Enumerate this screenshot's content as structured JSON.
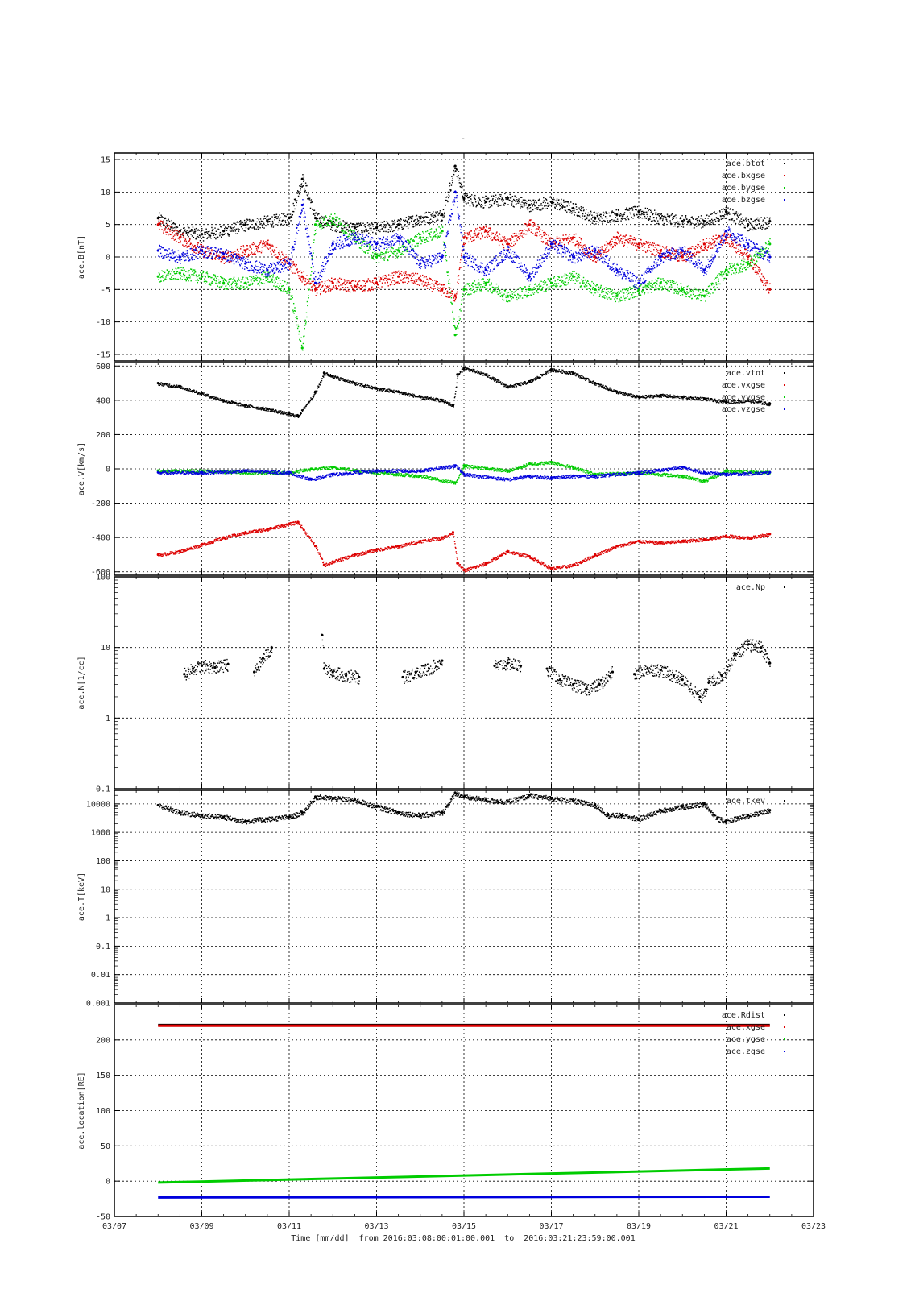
{
  "page_title": "-",
  "colors": {
    "black": "#000000",
    "red": "#dd0000",
    "green": "#00cc00",
    "blue": "#0000dd"
  },
  "time_axis": {
    "xlabel": "Time [mm/dd]  from 2016:03:08:00:01:00.001  to  2016:03:21:23:59:00.001",
    "tick_labels": [
      "03/07",
      "03/09",
      "03/11",
      "03/13",
      "03/15",
      "03/17",
      "03/19",
      "03/21",
      "03/23"
    ],
    "tick_days": [
      7,
      9,
      11,
      13,
      15,
      17,
      19,
      21,
      23
    ],
    "xlim_days": [
      7,
      23
    ],
    "data_start_day": 8.0,
    "data_end_day": 22.0
  },
  "chart_data": [
    {
      "type": "scatter",
      "ylabel": "ace.B[nT]",
      "ylim": [
        -16,
        16
      ],
      "yscale": "linear",
      "yticks": [
        -15,
        -10,
        -5,
        0,
        5,
        10,
        15
      ],
      "grid": true,
      "legend_position": "top-right",
      "series": [
        {
          "name": "ace.btot",
          "color": "#000000",
          "x": [
            8.0,
            8.5,
            9.0,
            9.5,
            10.0,
            10.5,
            11.0,
            11.3,
            11.6,
            12.0,
            12.5,
            13.0,
            13.5,
            14.0,
            14.5,
            14.8,
            15.0,
            15.5,
            16.0,
            16.5,
            17.0,
            17.5,
            18.0,
            18.5,
            19.0,
            19.5,
            20.0,
            20.5,
            21.0,
            21.5,
            22.0
          ],
          "y": [
            6,
            4,
            3.5,
            4,
            5,
            5.5,
            6,
            12,
            6,
            5,
            4.5,
            4.5,
            5,
            6,
            6.5,
            14,
            9,
            8.5,
            9,
            8,
            8.5,
            7.5,
            6,
            6.5,
            7,
            6,
            5.5,
            5.5,
            7,
            5,
            5.5
          ]
        },
        {
          "name": "ace.bxgse",
          "color": "#dd0000",
          "x": [
            8.0,
            8.5,
            9.0,
            9.5,
            10.0,
            10.5,
            11.0,
            11.3,
            11.6,
            12.0,
            12.5,
            13.0,
            13.5,
            14.0,
            14.5,
            14.8,
            15.0,
            15.5,
            16.0,
            16.5,
            17.0,
            17.5,
            18.0,
            18.5,
            19.0,
            19.5,
            20.0,
            20.5,
            21.0,
            21.5,
            22.0
          ],
          "y": [
            5,
            3,
            1,
            0,
            1,
            2,
            -1,
            -3,
            -5,
            -4,
            -4.5,
            -4,
            -3,
            -3.5,
            -5,
            -6,
            3,
            4,
            2,
            5,
            2,
            3,
            0,
            3,
            2,
            1,
            0,
            2,
            3,
            0,
            -5
          ]
        },
        {
          "name": "ace.bygse",
          "color": "#00cc00",
          "x": [
            8.0,
            8.5,
            9.0,
            9.5,
            10.0,
            10.5,
            11.0,
            11.3,
            11.6,
            12.0,
            12.5,
            13.0,
            13.5,
            14.0,
            14.5,
            14.8,
            15.0,
            15.5,
            16.0,
            16.5,
            17.0,
            17.5,
            18.0,
            18.5,
            19.0,
            19.5,
            20.0,
            20.5,
            21.0,
            21.5,
            22.0
          ],
          "y": [
            -3,
            -2.5,
            -3,
            -4,
            -4,
            -3,
            -5,
            -14,
            5,
            6,
            3,
            0,
            1,
            3,
            4,
            -12,
            -5,
            -4,
            -6,
            -5,
            -4,
            -3,
            -5,
            -6,
            -5,
            -4,
            -5,
            -6,
            -2,
            -1,
            2
          ]
        },
        {
          "name": "ace.bzgse",
          "color": "#0000dd",
          "x": [
            8.0,
            8.5,
            9.0,
            9.5,
            10.0,
            10.5,
            11.0,
            11.3,
            11.6,
            12.0,
            12.5,
            13.0,
            13.5,
            14.0,
            14.5,
            14.8,
            15.0,
            15.5,
            16.0,
            16.5,
            17.0,
            17.5,
            18.0,
            18.5,
            19.0,
            19.5,
            20.0,
            20.5,
            21.0,
            21.5,
            22.0
          ],
          "y": [
            1,
            0,
            1,
            0.5,
            -1,
            -2,
            -1,
            8,
            -4,
            2,
            3,
            2,
            3,
            -1,
            0,
            10,
            0,
            -2,
            1,
            -3,
            2,
            0,
            1,
            -2,
            -4,
            0,
            1,
            -2,
            4,
            2,
            0
          ]
        }
      ]
    },
    {
      "type": "scatter",
      "ylabel": "ace.V[km/s]",
      "ylim": [
        -620,
        620
      ],
      "yscale": "linear",
      "yticks": [
        -600,
        -400,
        -200,
        0,
        200,
        400,
        600
      ],
      "grid": true,
      "legend_position": "top-right",
      "series": [
        {
          "name": "ace.vtot",
          "color": "#000000",
          "x": [
            8.0,
            8.5,
            9.0,
            9.5,
            10.0,
            10.5,
            11.0,
            11.2,
            11.6,
            11.8,
            12.0,
            12.5,
            13.0,
            13.5,
            14.0,
            14.5,
            14.75,
            14.85,
            15.0,
            15.5,
            16.0,
            16.5,
            17.0,
            17.5,
            18.0,
            18.5,
            19.0,
            19.5,
            20.0,
            20.5,
            21.0,
            21.5,
            22.0
          ],
          "y": [
            500,
            480,
            440,
            400,
            370,
            350,
            320,
            310,
            450,
            560,
            540,
            500,
            470,
            450,
            420,
            400,
            370,
            550,
            590,
            550,
            480,
            510,
            580,
            560,
            500,
            450,
            420,
            430,
            420,
            410,
            390,
            400,
            380
          ]
        },
        {
          "name": "ace.vxgse",
          "color": "#dd0000",
          "x": [
            8.0,
            8.5,
            9.0,
            9.5,
            10.0,
            10.5,
            11.0,
            11.2,
            11.6,
            11.8,
            12.0,
            12.5,
            13.0,
            13.5,
            14.0,
            14.5,
            14.75,
            14.85,
            15.0,
            15.5,
            16.0,
            16.5,
            17.0,
            17.5,
            18.0,
            18.5,
            19.0,
            19.5,
            20.0,
            20.5,
            21.0,
            21.5,
            22.0
          ],
          "y": [
            -500,
            -480,
            -440,
            -400,
            -370,
            -350,
            -320,
            -310,
            -450,
            -560,
            -540,
            -500,
            -470,
            -450,
            -420,
            -400,
            -370,
            -550,
            -590,
            -550,
            -480,
            -510,
            -580,
            -560,
            -500,
            -450,
            -420,
            -430,
            -420,
            -410,
            -390,
            -400,
            -380
          ]
        },
        {
          "name": "ace.vygse",
          "color": "#00cc00",
          "x": [
            8.0,
            9.0,
            10.0,
            11.0,
            11.5,
            12.0,
            13.0,
            14.0,
            14.8,
            15.0,
            16.0,
            16.5,
            17.0,
            17.5,
            18.0,
            19.0,
            20.0,
            20.5,
            21.0,
            22.0
          ],
          "y": [
            -10,
            -10,
            -20,
            -20,
            0,
            10,
            -20,
            -40,
            -80,
            20,
            -10,
            30,
            40,
            10,
            -30,
            -20,
            -40,
            -70,
            -10,
            -20
          ]
        },
        {
          "name": "ace.vzgse",
          "color": "#0000dd",
          "x": [
            8.0,
            9.0,
            10.0,
            11.0,
            11.5,
            12.0,
            13.0,
            14.0,
            14.8,
            15.0,
            16.0,
            16.5,
            17.0,
            17.5,
            18.0,
            19.0,
            20.0,
            20.5,
            21.0,
            22.0
          ],
          "y": [
            -20,
            -20,
            -10,
            -20,
            -60,
            -30,
            -10,
            -10,
            20,
            -30,
            -60,
            -40,
            -50,
            -40,
            -40,
            -20,
            10,
            -20,
            -30,
            -20
          ]
        }
      ]
    },
    {
      "type": "scatter",
      "ylabel": "ace.N[1/cc]",
      "ylim": [
        0.1,
        100
      ],
      "yscale": "log",
      "yticks": [
        0.1,
        1,
        10,
        100
      ],
      "grid": true,
      "legend_position": "top-right",
      "series": [
        {
          "name": "ace.Np",
          "color": "#000000",
          "x": [
            8.6,
            8.8,
            9.0,
            9.3,
            9.6,
            10.2,
            10.4,
            10.6,
            11.75,
            11.8,
            12.0,
            12.3,
            12.6,
            13.6,
            13.9,
            14.2,
            14.5,
            15.7,
            16.0,
            16.3,
            16.9,
            17.2,
            17.5,
            17.8,
            18.1,
            18.4,
            18.9,
            19.2,
            19.5,
            19.8,
            20.0,
            20.4,
            20.6,
            20.9,
            21.2,
            21.5,
            21.8,
            22.0
          ],
          "y": [
            4.2,
            5,
            5.5,
            5.2,
            5.8,
            4.5,
            7,
            10,
            15,
            5,
            4.5,
            4,
            3.8,
            3.8,
            4.5,
            5,
            6.5,
            5.5,
            6,
            5.5,
            5,
            3.5,
            3,
            2.6,
            3,
            4.5,
            4.2,
            5,
            4.8,
            4,
            3.5,
            2,
            3.2,
            4,
            8,
            11,
            10,
            6
          ]
        }
      ]
    },
    {
      "type": "scatter",
      "ylabel": "ace.T[keV]",
      "ylim": [
        0.001,
        30000
      ],
      "yscale": "log",
      "yticks": [
        0.001,
        0.01,
        0.1,
        1,
        10,
        100,
        1000,
        10000
      ],
      "ytick_labels": [
        "0.001",
        "0.01",
        "0.1",
        "1",
        "10",
        "100",
        "1000",
        "10000"
      ],
      "grid": true,
      "legend_position": "top-right",
      "series": [
        {
          "name": "ace.tkev",
          "color": "#000000",
          "x": [
            8.0,
            8.5,
            9.0,
            9.5,
            10.0,
            10.5,
            11.0,
            11.3,
            11.6,
            12.0,
            12.5,
            13.0,
            13.5,
            14.0,
            14.5,
            14.8,
            15.0,
            15.5,
            16.0,
            16.5,
            17.0,
            17.5,
            18.0,
            18.3,
            18.6,
            19.0,
            19.5,
            20.0,
            20.5,
            20.8,
            21.0,
            21.5,
            22.0
          ],
          "y": [
            9000,
            5000,
            4000,
            3500,
            2500,
            3000,
            3500,
            5000,
            18000,
            16000,
            14000,
            8000,
            5000,
            4000,
            5000,
            25000,
            18000,
            14000,
            12000,
            20000,
            16000,
            13000,
            9000,
            4000,
            4000,
            3000,
            6000,
            8000,
            10000,
            3000,
            2500,
            4000,
            6000
          ]
        }
      ]
    },
    {
      "type": "line",
      "ylabel": "ace.location[RE]",
      "ylim": [
        -50,
        250
      ],
      "yscale": "linear",
      "yticks": [
        -50,
        0,
        50,
        100,
        150,
        200
      ],
      "grid": true,
      "legend_position": "top-right",
      "series": [
        {
          "name": "ace.Rdist",
          "color": "#000000",
          "x": [
            8.0,
            22.0
          ],
          "y": [
            221,
            221
          ]
        },
        {
          "name": "ace.xgse",
          "color": "#dd0000",
          "x": [
            8.0,
            22.0
          ],
          "y": [
            220,
            220
          ]
        },
        {
          "name": "ace.ygse",
          "color": "#00cc00",
          "x": [
            8.0,
            22.0
          ],
          "y": [
            -2,
            18
          ]
        },
        {
          "name": "ace.zgse",
          "color": "#0000dd",
          "x": [
            8.0,
            22.0
          ],
          "y": [
            -23,
            -22
          ]
        }
      ]
    }
  ]
}
